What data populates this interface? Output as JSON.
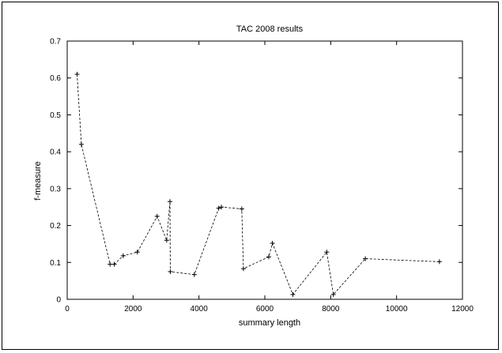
{
  "chart_data": {
    "type": "line",
    "title": "TAC 2008 results",
    "xlabel": "summary length",
    "ylabel": "f-measure",
    "xlim": [
      0,
      12000
    ],
    "ylim": [
      0,
      0.7
    ],
    "xticks": [
      0,
      2000,
      4000,
      6000,
      8000,
      10000,
      12000
    ],
    "yticks": [
      0,
      0.1,
      0.2,
      0.3,
      0.4,
      0.5,
      0.6,
      0.7
    ],
    "grid": false,
    "line_style": "dashed",
    "marker": "+",
    "series": [
      {
        "x": [
          300,
          430,
          1300,
          1430,
          1700,
          2130,
          2730,
          3020,
          3120,
          3130,
          3860,
          4600,
          4680,
          5300,
          5350,
          6120,
          6230,
          6850,
          7880,
          8080,
          9050,
          11300
        ],
        "y": [
          0.61,
          0.42,
          0.095,
          0.095,
          0.118,
          0.128,
          0.225,
          0.16,
          0.265,
          0.075,
          0.067,
          0.247,
          0.25,
          0.245,
          0.083,
          0.115,
          0.152,
          0.013,
          0.128,
          0.013,
          0.11,
          0.102
        ]
      }
    ]
  }
}
